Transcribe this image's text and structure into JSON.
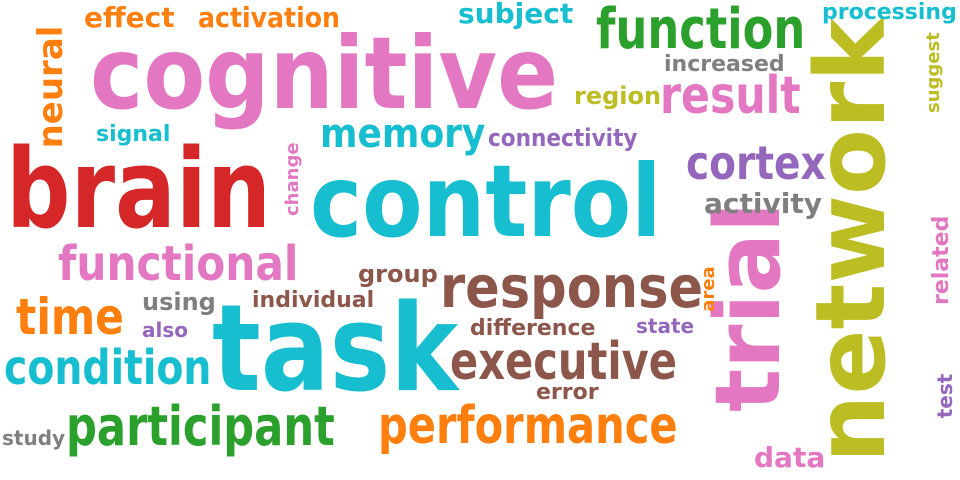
{
  "colors": {
    "red": "#d62728",
    "pink": "#e377c2",
    "cyan": "#17becf",
    "olive": "#bcbd22",
    "green": "#2ca02c",
    "orange": "#ff7f0e",
    "brown": "#8c564b",
    "purple": "#9467bd",
    "gray": "#7f7f7f"
  },
  "words": {
    "cognitive": "cognitive",
    "brain": "brain",
    "control": "control",
    "task": "task",
    "network": "network",
    "trial": "trial",
    "response": "response",
    "function": "function",
    "result": "result",
    "functional": "functional",
    "executive": "executive",
    "performance": "performance",
    "participant": "participant",
    "condition": "condition",
    "memory": "memory",
    "cortex": "cortex",
    "time": "time",
    "neural": "neural",
    "effect": "effect",
    "activation": "activation",
    "subject": "subject",
    "processing": "processing",
    "increased": "increased",
    "region": "region",
    "suggest": "suggest",
    "signal": "signal",
    "connectivity": "connectivity",
    "change": "change",
    "activity": "activity",
    "related": "related",
    "group": "group",
    "area": "area",
    "using": "using",
    "individual": "individual",
    "also": "also",
    "difference": "difference",
    "state": "state",
    "error": "error",
    "test": "test",
    "study": "study",
    "data": "data"
  }
}
